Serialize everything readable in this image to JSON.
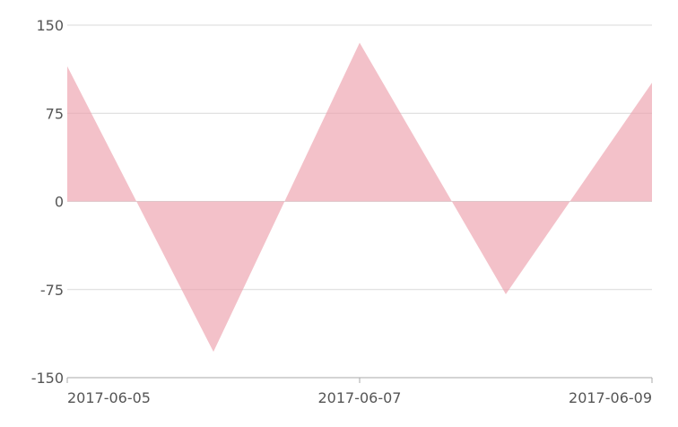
{
  "chart_data": {
    "type": "area",
    "title": "",
    "xlabel": "",
    "ylabel": "",
    "x": [
      "2017-06-05",
      "2017-06-06",
      "2017-06-07",
      "2017-06-08",
      "2017-06-09"
    ],
    "xticks": [
      "2017-06-05",
      "2017-06-07",
      "2017-06-09"
    ],
    "yticks": [
      150,
      75,
      0,
      -75,
      -150
    ],
    "ylim": [
      -150,
      150
    ],
    "grid": true,
    "legend": "none",
    "series": [
      {
        "values": [
          115,
          -128,
          135,
          -79,
          101
        ],
        "color": "#ec9fac",
        "opacity": 0.65
      }
    ]
  }
}
